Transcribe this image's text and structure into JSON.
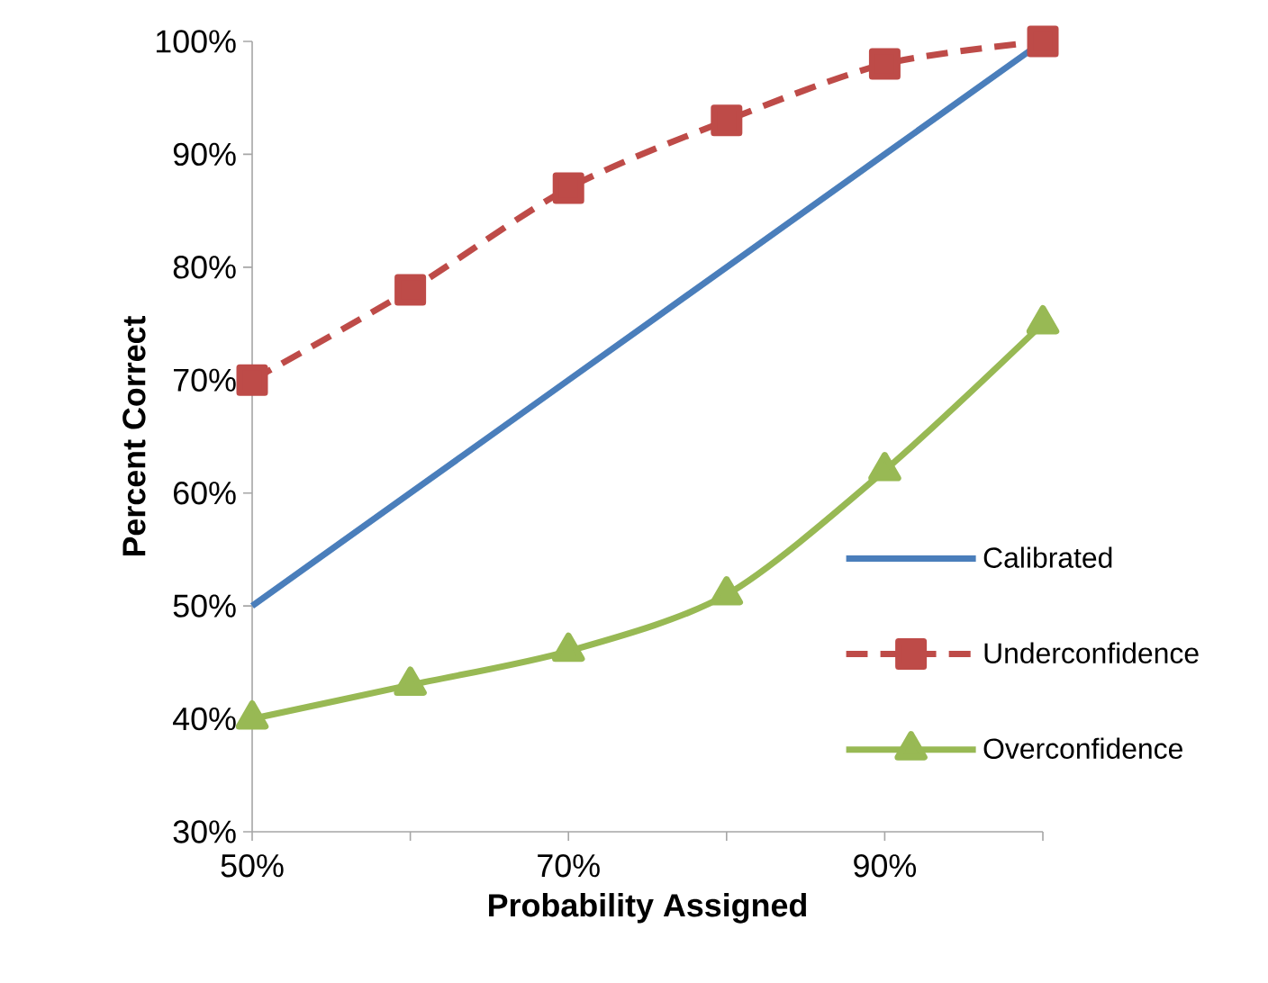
{
  "chart_data": {
    "type": "line",
    "xlabel": "Probability Assigned",
    "ylabel": "Percent Correct",
    "x": [
      50,
      60,
      70,
      80,
      90,
      100
    ],
    "series": [
      {
        "name": "Calibrated",
        "color": "#4a7ebb",
        "values": [
          50,
          60,
          70,
          80,
          90,
          100
        ],
        "marker": "none",
        "line_style": "solid"
      },
      {
        "name": "Underconfidence",
        "color": "#be4b48",
        "values": [
          70,
          78,
          87,
          93,
          98,
          100
        ],
        "marker": "square",
        "line_style": "dashed"
      },
      {
        "name": "Overconfidence",
        "color": "#98b954",
        "values": [
          40,
          43,
          46,
          51,
          62,
          75
        ],
        "marker": "triangle",
        "line_style": "solid"
      }
    ],
    "xlim": [
      50,
      100
    ],
    "xticks": [
      {
        "value": 50,
        "label": "50%"
      },
      {
        "value": 60,
        "label": null
      },
      {
        "value": 70,
        "label": "70%"
      },
      {
        "value": 80,
        "label": null
      },
      {
        "value": 90,
        "label": "90%"
      },
      {
        "value": 100,
        "label": null
      }
    ],
    "ylim": [
      30,
      100
    ],
    "yticks": [
      {
        "value": 30,
        "label": "30%"
      },
      {
        "value": 40,
        "label": "40%"
      },
      {
        "value": 50,
        "label": "50%"
      },
      {
        "value": 60,
        "label": "60%"
      },
      {
        "value": 70,
        "label": "70%"
      },
      {
        "value": 80,
        "label": "80%"
      },
      {
        "value": 90,
        "label": "90%"
      },
      {
        "value": 100,
        "label": "100%"
      }
    ],
    "grid": false,
    "legend": "right"
  }
}
